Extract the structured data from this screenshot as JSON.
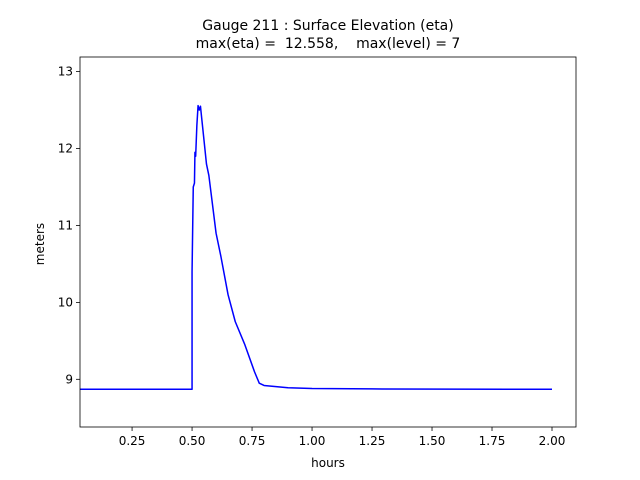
{
  "chart_data": {
    "type": "line",
    "title": "Gauge 211 : Surface Elevation (eta)",
    "subtitle": "max(eta) =  12.558,    max(level) = 7",
    "x_label": "hours",
    "y_label": "meters",
    "xlim": [
      0.033,
      2.1
    ],
    "ylim": [
      8.38,
      13.19
    ],
    "xticks": [
      {
        "value": 0.25,
        "label": "0.25"
      },
      {
        "value": 0.5,
        "label": "0.50"
      },
      {
        "value": 0.75,
        "label": "0.75"
      },
      {
        "value": 1.0,
        "label": "1.00"
      },
      {
        "value": 1.25,
        "label": "1.25"
      },
      {
        "value": 1.5,
        "label": "1.50"
      },
      {
        "value": 1.75,
        "label": "1.75"
      },
      {
        "value": 2.0,
        "label": "2.00"
      }
    ],
    "yticks": [
      9,
      10,
      11,
      12,
      13
    ],
    "x": [
      0.033,
      0.5,
      0.5,
      0.505,
      0.51,
      0.512,
      0.515,
      0.52,
      0.525,
      0.53,
      0.535,
      0.54,
      0.55,
      0.56,
      0.57,
      0.58,
      0.6,
      0.62,
      0.65,
      0.68,
      0.72,
      0.76,
      0.78,
      0.8,
      0.9,
      1.0,
      1.25,
      2.0
    ],
    "series": [
      {
        "color": "#0000ff",
        "values": [
          8.87,
          8.87,
          10.4,
          11.5,
          11.55,
          11.95,
          11.9,
          12.3,
          12.558,
          12.5,
          12.55,
          12.4,
          12.1,
          11.8,
          11.65,
          11.4,
          10.9,
          10.6,
          10.1,
          9.75,
          9.45,
          9.1,
          8.95,
          8.92,
          8.89,
          8.88,
          8.875,
          8.87
        ]
      }
    ]
  }
}
